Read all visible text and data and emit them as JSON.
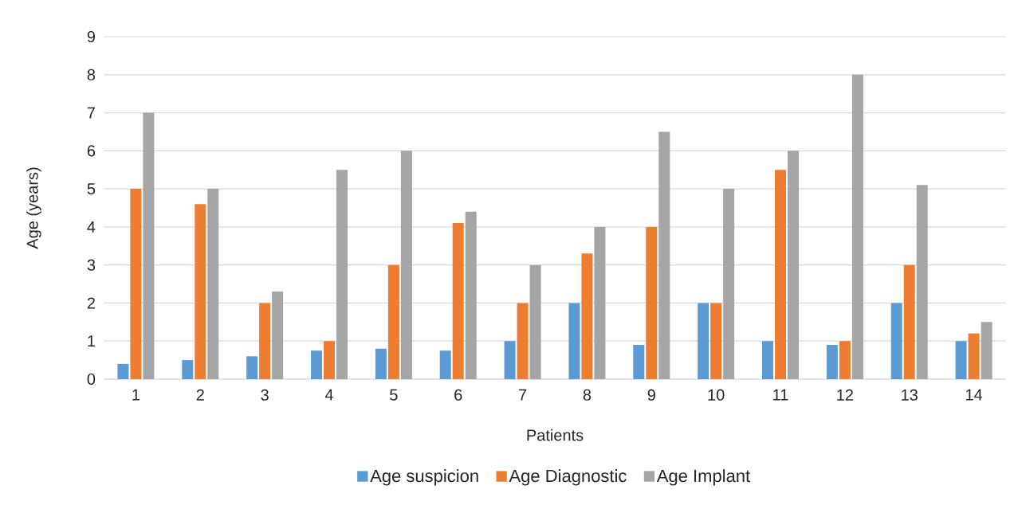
{
  "chart_data": {
    "type": "bar",
    "xlabel": "Patients",
    "ylabel": "Age (years)",
    "categories": [
      "1",
      "2",
      "3",
      "4",
      "5",
      "6",
      "7",
      "8",
      "9",
      "10",
      "11",
      "12",
      "13",
      "14"
    ],
    "series": [
      {
        "name": "Age suspicion",
        "color": "#5b9bd5",
        "values": [
          0.4,
          0.5,
          0.6,
          0.75,
          0.8,
          0.75,
          1,
          2,
          0.9,
          2,
          1,
          0.9,
          2,
          1
        ]
      },
      {
        "name": "Age Diagnostic",
        "color": "#ed7d31",
        "values": [
          5,
          4.6,
          2,
          1,
          3,
          4.1,
          2,
          3.3,
          4,
          2,
          5.5,
          1,
          3,
          1.2
        ]
      },
      {
        "name": "Age Implant",
        "color": "#a5a5a5",
        "values": [
          7,
          5,
          2.3,
          5.5,
          6,
          4.4,
          3,
          4,
          6.5,
          5,
          6,
          8,
          5.1,
          1.5
        ]
      }
    ],
    "ylim": [
      0,
      9
    ],
    "yticks": [
      0,
      1,
      2,
      3,
      4,
      5,
      6,
      7,
      8,
      9
    ],
    "grid": "y",
    "legend": "bottom"
  }
}
